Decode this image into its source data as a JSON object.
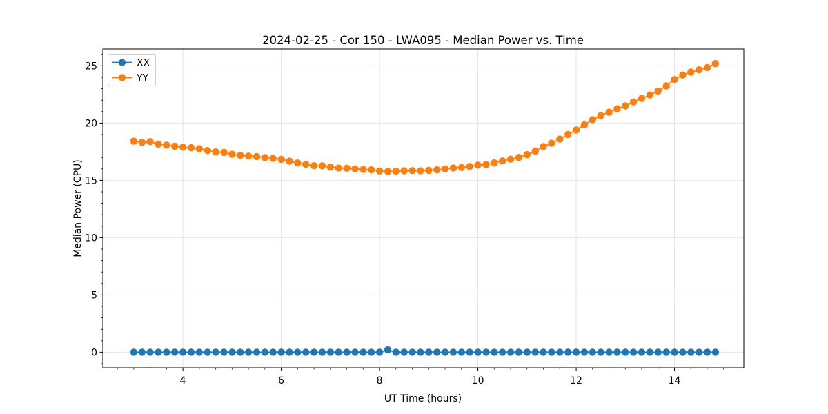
{
  "chart_data": {
    "type": "line",
    "title": "2024-02-25 - Cor 150 - LWA095 - Median Power vs. Time",
    "xlabel": "UT Time (hours)",
    "ylabel": "Median Power (CPU)",
    "xlim": [
      2.37,
      15.41
    ],
    "ylim": [
      -1.36,
      26.47
    ],
    "x_ticks": [
      4,
      6,
      8,
      10,
      12,
      14
    ],
    "y_ticks": [
      0,
      5,
      10,
      15,
      20,
      25
    ],
    "x_minor_step": 0.3333,
    "y_minor_step": 1,
    "grid": true,
    "legend_position": "upper left",
    "x": [
      3.0,
      3.167,
      3.333,
      3.5,
      3.667,
      3.833,
      4.0,
      4.167,
      4.333,
      4.5,
      4.667,
      4.833,
      5.0,
      5.167,
      5.333,
      5.5,
      5.667,
      5.833,
      6.0,
      6.167,
      6.333,
      6.5,
      6.667,
      6.833,
      7.0,
      7.167,
      7.333,
      7.5,
      7.667,
      7.833,
      8.0,
      8.167,
      8.333,
      8.5,
      8.667,
      8.833,
      9.0,
      9.167,
      9.333,
      9.5,
      9.667,
      9.833,
      10.0,
      10.167,
      10.333,
      10.5,
      10.667,
      10.833,
      11.0,
      11.167,
      11.333,
      11.5,
      11.667,
      11.833,
      12.0,
      12.167,
      12.333,
      12.5,
      12.667,
      12.833,
      13.0,
      13.167,
      13.333,
      13.5,
      13.667,
      13.833,
      14.0,
      14.167,
      14.333,
      14.5,
      14.667,
      14.833
    ],
    "series": [
      {
        "name": "XX",
        "color": "#1f77b4",
        "values": [
          0.0,
          0.0,
          0.0,
          0.0,
          0.0,
          0.0,
          0.0,
          0.0,
          0.0,
          0.0,
          0.0,
          0.0,
          0.0,
          0.0,
          0.0,
          0.0,
          0.0,
          0.0,
          0.0,
          0.0,
          0.0,
          0.0,
          0.0,
          0.0,
          0.0,
          0.0,
          0.0,
          0.0,
          0.0,
          0.0,
          0.0,
          0.2,
          0.0,
          0.0,
          0.0,
          0.0,
          0.0,
          0.0,
          0.0,
          0.0,
          0.0,
          0.0,
          0.0,
          0.0,
          0.0,
          0.0,
          0.0,
          0.0,
          0.0,
          0.0,
          0.0,
          0.0,
          0.0,
          0.0,
          0.0,
          0.0,
          0.0,
          0.0,
          0.0,
          0.0,
          0.0,
          0.0,
          0.0,
          0.0,
          0.0,
          0.0,
          0.0,
          0.0,
          0.0,
          0.0,
          0.0,
          0.0
        ]
      },
      {
        "name": "YY",
        "color": "#ff7f0e",
        "values": [
          18.42,
          18.32,
          18.38,
          18.16,
          18.08,
          17.98,
          17.9,
          17.85,
          17.76,
          17.6,
          17.48,
          17.44,
          17.28,
          17.18,
          17.12,
          17.07,
          16.98,
          16.92,
          16.84,
          16.68,
          16.52,
          16.4,
          16.28,
          16.27,
          16.16,
          16.07,
          16.06,
          16.0,
          15.96,
          15.92,
          15.82,
          15.77,
          15.8,
          15.84,
          15.85,
          15.83,
          15.87,
          15.93,
          16.0,
          16.08,
          16.12,
          16.21,
          16.33,
          16.38,
          16.53,
          16.7,
          16.85,
          17.0,
          17.25,
          17.55,
          17.95,
          18.25,
          18.6,
          19.0,
          19.4,
          19.85,
          20.3,
          20.65,
          20.95,
          21.25,
          21.5,
          21.85,
          22.15,
          22.45,
          22.8,
          23.25,
          23.8,
          24.2,
          24.45,
          24.65,
          24.85,
          25.2
        ]
      }
    ],
    "colors": {
      "grid": "#e5e5e5",
      "spine": "#000000",
      "legend_border": "#cccccc"
    }
  }
}
